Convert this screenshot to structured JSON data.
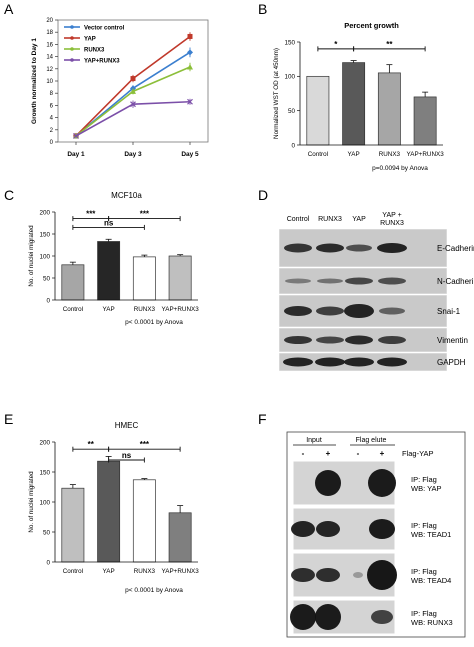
{
  "panels": {
    "A": "A",
    "B": "B",
    "C": "C",
    "D": "D",
    "E": "E",
    "F": "F"
  },
  "chart_data": [
    {
      "panel": "A",
      "type": "line",
      "title": "",
      "ylabel": "Growth normalized to Day 1",
      "xlabel": "",
      "categories": [
        "Day 1",
        "Day 3",
        "Day 5"
      ],
      "ylim": [
        0,
        20
      ],
      "yticks": [
        0,
        2,
        4,
        6,
        8,
        10,
        12,
        14,
        16,
        18,
        20
      ],
      "series": [
        {
          "name": "Vector control",
          "color": "#3b7fcf",
          "marker": "diamond",
          "values": [
            1,
            8.8,
            14.7
          ],
          "err": [
            0.2,
            0.5,
            0.8
          ]
        },
        {
          "name": "YAP",
          "color": "#c0392b",
          "marker": "square",
          "values": [
            1,
            10.4,
            17.3
          ],
          "err": [
            0.2,
            0.6,
            0.7
          ]
        },
        {
          "name": "RUNX3",
          "color": "#8cbf3a",
          "marker": "triangle",
          "values": [
            1,
            8.3,
            12.3
          ],
          "err": [
            0.2,
            0.5,
            0.7
          ]
        },
        {
          "name": "YAP+RUNX3",
          "color": "#7b4fa8",
          "marker": "cross",
          "values": [
            1,
            6.2,
            6.6
          ],
          "err": [
            0.2,
            0.6,
            0.5
          ]
        }
      ]
    },
    {
      "panel": "B",
      "type": "bar",
      "title": "Percent growth",
      "ylabel": "Normalized WST OD (at 450nm)",
      "categories": [
        "Control",
        "YAP",
        "RUNX3",
        "YAP+RUNX3"
      ],
      "values": [
        100,
        120,
        105,
        70
      ],
      "err": [
        0,
        3,
        12,
        7
      ],
      "colors": [
        "#d9d9d9",
        "#595959",
        "#a6a6a6",
        "#7f7f7f"
      ],
      "ylim": [
        0,
        150
      ],
      "yticks": [
        0,
        50,
        100,
        150
      ],
      "sig": [
        {
          "label": "*",
          "from": 0,
          "to": 1,
          "y": 140
        },
        {
          "label": "**",
          "from": 1,
          "to": 3,
          "y": 140
        }
      ],
      "note": "p=0.0094  by Anova"
    },
    {
      "panel": "C",
      "type": "bar",
      "title": "MCF10a",
      "ylabel": "No. of nuclei migrated",
      "categories": [
        "Control",
        "YAP",
        "RUNX3",
        "YAP+RUNX3"
      ],
      "values": [
        80,
        133,
        98,
        100
      ],
      "err": [
        6,
        5,
        4,
        3
      ],
      "colors": [
        "#a6a6a6",
        "#262626",
        "#ffffff",
        "#bfbfbf"
      ],
      "ylim": [
        0,
        200
      ],
      "yticks": [
        0,
        50,
        100,
        150,
        200
      ],
      "sig": [
        {
          "label": "***",
          "from": 0,
          "to": 1,
          "y": 185
        },
        {
          "label": "***",
          "from": 1,
          "to": 3,
          "y": 185
        },
        {
          "label": "ns",
          "from": 0,
          "to": 2,
          "y": 165
        }
      ],
      "note": "p< 0.0001 by Anova"
    },
    {
      "panel": "E",
      "type": "bar",
      "title": "HMEC",
      "ylabel": "No. of nuclei migrated",
      "categories": [
        "Control",
        "YAP",
        "RUNX3",
        "YAP+RUNX3"
      ],
      "values": [
        123,
        168,
        137,
        82
      ],
      "err": [
        6,
        8,
        2,
        12
      ],
      "colors": [
        "#bfbfbf",
        "#595959",
        "#ffffff",
        "#7f7f7f"
      ],
      "ylim": [
        0,
        200
      ],
      "yticks": [
        0,
        50,
        100,
        150,
        200
      ],
      "sig": [
        {
          "label": "**",
          "from": 0,
          "to": 1,
          "y": 188
        },
        {
          "label": "ns",
          "from": 1,
          "to": 2,
          "y": 170
        },
        {
          "label": "***",
          "from": 1,
          "to": 3,
          "y": 188
        }
      ],
      "note": "p< 0.0001 by Anova"
    }
  ],
  "blot_d": {
    "columns": [
      "Control",
      "RUNX3",
      "YAP",
      "YAP +\nRUNX3"
    ],
    "rows": [
      "E-Cadherine",
      "N-Cadherine",
      "Snai-1",
      "Vimentin",
      "GAPDH"
    ]
  },
  "blot_f": {
    "groups": [
      "Input",
      "Flag elute"
    ],
    "signs": [
      "-",
      "+",
      "-",
      "+"
    ],
    "flag_label": "Flag-YAP",
    "rows": [
      [
        "IP: Flag",
        "WB: YAP"
      ],
      [
        "IP: Flag",
        "WB: TEAD1"
      ],
      [
        "IP: Flag",
        "WB: TEAD4"
      ],
      [
        "IP: Flag",
        "WB: RUNX3"
      ]
    ]
  }
}
